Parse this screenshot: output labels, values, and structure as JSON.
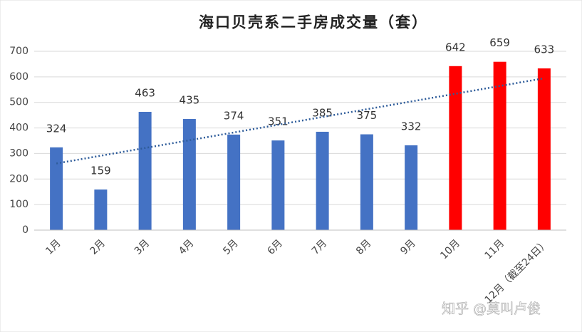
{
  "chart_data": {
    "type": "bar",
    "title": "海口贝壳系二手房成交量（套）",
    "categories": [
      "1月",
      "2月",
      "3月",
      "4月",
      "5月",
      "6月",
      "7月",
      "8月",
      "9月",
      "10月",
      "11月",
      "12月（截至24日）"
    ],
    "values": [
      324,
      159,
      463,
      435,
      374,
      351,
      385,
      375,
      332,
      642,
      659,
      633
    ],
    "colors": [
      "#4472c4",
      "#4472c4",
      "#4472c4",
      "#4472c4",
      "#4472c4",
      "#4472c4",
      "#4472c4",
      "#4472c4",
      "#4472c4",
      "#ff0000",
      "#ff0000",
      "#ff0000"
    ],
    "ylim": [
      0,
      700
    ],
    "yticks": [
      0,
      100,
      200,
      300,
      400,
      500,
      600,
      700
    ],
    "grid": true,
    "trendline": true,
    "trendline_color": "#2e5c9a",
    "watermark": "知乎 @莫叫卢俊"
  }
}
